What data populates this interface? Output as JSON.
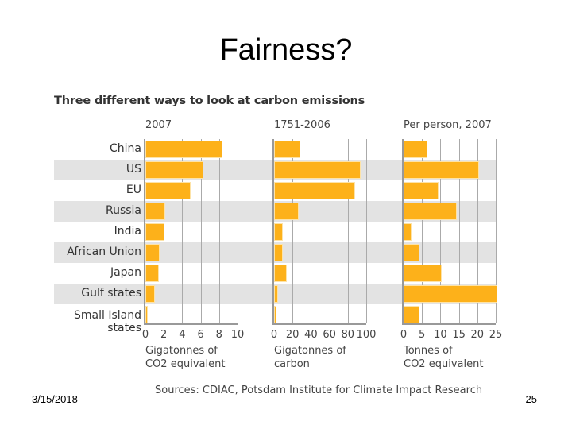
{
  "slide": {
    "title": "Fairness?",
    "footer_date": "3/15/2018",
    "page_number": "25"
  },
  "chart_data": {
    "type": "bar",
    "orientation": "horizontal",
    "title": "Three different ways to look at carbon emissions",
    "source": "Sources: CDIAC, Potsdam Institute for Climate Impact Research",
    "categories": [
      "China",
      "US",
      "EU",
      "Russia",
      "India",
      "African Union",
      "Japan",
      "Gulf states",
      "Small Island states"
    ],
    "category_labels": [
      [
        "China"
      ],
      [
        "US"
      ],
      [
        "EU"
      ],
      [
        "Russia"
      ],
      [
        "India"
      ],
      [
        "African Union"
      ],
      [
        "Japan"
      ],
      [
        "Gulf states"
      ],
      [
        "Small Island",
        "states"
      ]
    ],
    "colors": {
      "bar": "#fdb11a",
      "band": "#e3e3e3",
      "grid": "#aaaaaa"
    },
    "grid": true,
    "series": [
      {
        "name": "2007",
        "xlabel": "Gigatonnes of\nCO2 equivalent",
        "xlim": [
          0,
          10
        ],
        "ticks": [
          "0",
          "2",
          "4",
          "6",
          "8",
          "10"
        ],
        "values": [
          8.2,
          6.1,
          4.7,
          2.0,
          1.9,
          1.4,
          1.3,
          0.9,
          0.1
        ]
      },
      {
        "name": "1751-2006",
        "xlabel": "Gigatonnes of\ncarbon",
        "xlim": [
          0,
          100
        ],
        "ticks": [
          "0",
          "20",
          "40",
          "60",
          "80",
          "100"
        ],
        "values": [
          27,
          92,
          86,
          25,
          8,
          8,
          12,
          3,
          0.5
        ]
      },
      {
        "name": "Per person, 2007",
        "xlabel": "Tonnes of\nCO2 equivalent",
        "xlim": [
          0,
          25
        ],
        "ticks": [
          "0",
          "5",
          "10",
          "15",
          "20",
          "25"
        ],
        "values": [
          6,
          20,
          9,
          14,
          1.7,
          3.8,
          10,
          25,
          3.8
        ]
      }
    ]
  }
}
